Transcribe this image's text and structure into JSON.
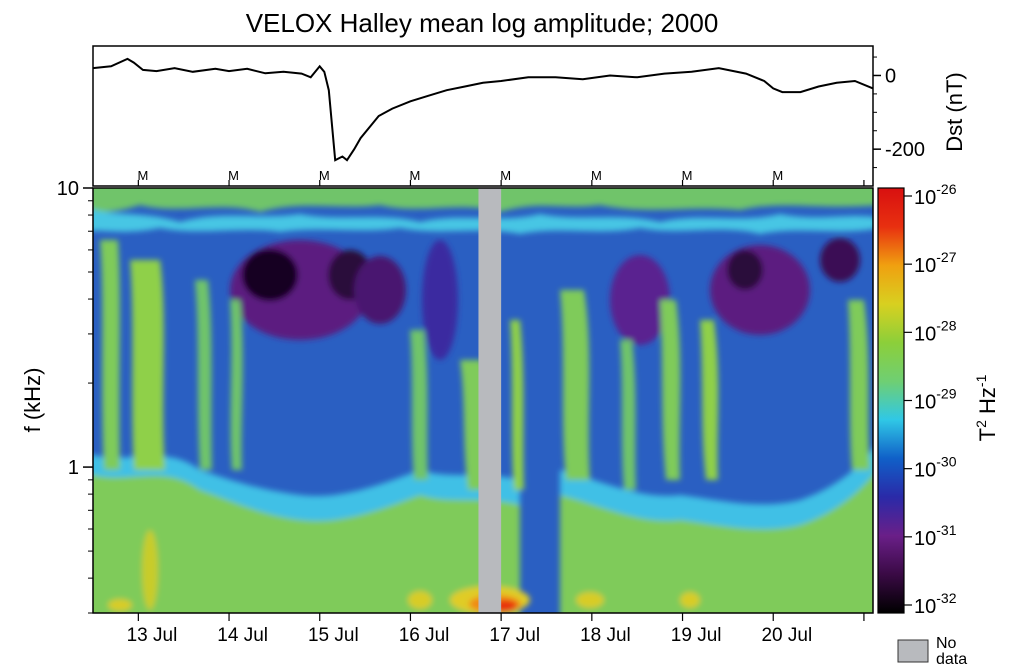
{
  "chart_data": [
    {
      "type": "line",
      "title": "VELOX Halley mean log amplitude;  2000",
      "ylabel": "Dst (nT)",
      "yticks": [
        "0",
        "-200"
      ],
      "ytick_values": [
        0,
        -200
      ],
      "ylim": [
        -300,
        80
      ],
      "xlim": [
        12.5,
        21.1
      ],
      "x": [
        12.5,
        12.7,
        12.88,
        12.95,
        13.05,
        13.2,
        13.4,
        13.6,
        13.85,
        14.0,
        14.2,
        14.4,
        14.6,
        14.8,
        14.9,
        15.0,
        15.05,
        15.1,
        15.17,
        15.25,
        15.3,
        15.38,
        15.45,
        15.55,
        15.65,
        15.8,
        16.0,
        16.2,
        16.4,
        16.6,
        16.8,
        17.0,
        17.3,
        17.6,
        17.9,
        18.2,
        18.5,
        18.8,
        19.1,
        19.4,
        19.7,
        19.9,
        20.0,
        20.1,
        20.3,
        20.5,
        20.7,
        20.9,
        21.1
      ],
      "y": [
        20,
        25,
        45,
        35,
        15,
        12,
        20,
        10,
        18,
        12,
        18,
        6,
        10,
        5,
        -5,
        25,
        10,
        -40,
        -230,
        -220,
        -230,
        -200,
        -170,
        -140,
        -110,
        -90,
        -70,
        -55,
        -40,
        -30,
        -20,
        -15,
        -5,
        -5,
        -10,
        0,
        -5,
        5,
        10,
        20,
        5,
        -15,
        -35,
        -45,
        -45,
        -30,
        -20,
        -15,
        -35
      ],
      "markers": [
        "M",
        "M",
        "M",
        "M",
        "M",
        "M",
        "M",
        "M"
      ],
      "marker_x": [
        13.05,
        14.05,
        15.05,
        16.05,
        17.05,
        18.05,
        19.05,
        20.05
      ]
    },
    {
      "type": "heatmap",
      "ylabel": "f (kHz)",
      "y_scale": "log",
      "ylim": [
        0.3,
        10
      ],
      "yticks": [
        "10",
        "1"
      ],
      "ytick_values": [
        10,
        1
      ],
      "xlim": [
        12.5,
        21.1
      ],
      "xticks": [
        "13 Jul",
        "14 Jul",
        "15 Jul",
        "16 Jul",
        "17 Jul",
        "18 Jul",
        "19 Jul",
        "20 Jul"
      ],
      "xtick_values": [
        13.15,
        14.15,
        15.15,
        16.15,
        17.15,
        18.15,
        19.15,
        20.15
      ],
      "no_data_range": [
        16.75,
        17.0
      ],
      "colorbar": {
        "label": "T",
        "label_sup": "2",
        "label_unit": "Hz",
        "label_unit_sup": "-1",
        "base": "10",
        "exponents": [
          "-26",
          "-27",
          "-28",
          "-29",
          "-30",
          "-31",
          "-32"
        ],
        "exponent_values": [
          -26,
          -27,
          -28,
          -29,
          -30,
          -31,
          -32
        ],
        "colors": [
          "#000000",
          "#3a0a45",
          "#6a1f88",
          "#2a2aa8",
          "#1060c8",
          "#30c8e6",
          "#6fcf73",
          "#8ccf3a",
          "#d8d020",
          "#f0a010",
          "#e83010",
          "#d81010"
        ]
      },
      "legend": {
        "label_line1": "No",
        "label_line2": "data",
        "color": "#b8babe"
      }
    }
  ]
}
